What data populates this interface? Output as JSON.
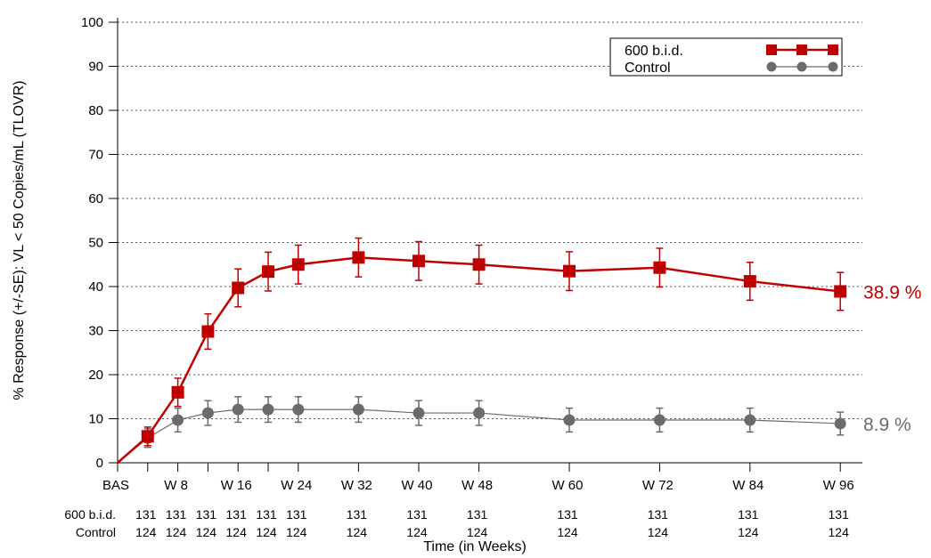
{
  "chart_data": {
    "type": "line",
    "ylabel": "% Response (+/-SE): VL < 50 Copies/mL (TLOVR)",
    "xlabel": "Time (in Weeks)",
    "ylim": [
      0,
      100
    ],
    "yticks": [
      0,
      10,
      20,
      30,
      40,
      50,
      60,
      70,
      80,
      90,
      100
    ],
    "xlim": [
      0,
      98
    ],
    "xtick_values": [
      0,
      8,
      16,
      24,
      32,
      40,
      48,
      60,
      72,
      84,
      96
    ],
    "xtick_labels": [
      "BAS",
      "W 8",
      "W 16",
      "W 24",
      "W 32",
      "W 40",
      "W 48",
      "W 60",
      "W 72",
      "W 84",
      "W 96"
    ],
    "minor_xticks": [
      4,
      12,
      20
    ],
    "grid": true,
    "legend_position": "top-right",
    "series": [
      {
        "name": "600 b.i.d.",
        "color": "#c00000",
        "marker": "square",
        "x": [
          0,
          4,
          8,
          12,
          16,
          20,
          24,
          32,
          40,
          48,
          60,
          72,
          84,
          96
        ],
        "y": [
          0,
          6,
          16,
          29.8,
          39.7,
          43.4,
          45,
          46.6,
          45.8,
          45,
          43.5,
          44.3,
          41.2,
          38.9
        ],
        "se": [
          null,
          2.1,
          3.2,
          4.0,
          4.3,
          4.4,
          4.4,
          4.4,
          4.4,
          4.4,
          4.4,
          4.4,
          4.3,
          4.3
        ],
        "end_label": "38.9 %"
      },
      {
        "name": "Control",
        "color": "#6b6b6b",
        "marker": "circle",
        "x": [
          0,
          4,
          8,
          12,
          16,
          20,
          24,
          32,
          40,
          48,
          60,
          72,
          84,
          96
        ],
        "y": [
          0,
          5.6,
          9.7,
          11.3,
          12.1,
          12.1,
          12.1,
          12.1,
          11.3,
          11.3,
          9.7,
          9.7,
          9.7,
          8.9
        ],
        "se": [
          null,
          2.1,
          2.7,
          2.8,
          2.9,
          2.9,
          2.9,
          2.9,
          2.8,
          2.8,
          2.7,
          2.7,
          2.7,
          2.6
        ],
        "end_label": "8.9 %"
      }
    ],
    "patient_counts": {
      "x": [
        4,
        8,
        12,
        16,
        20,
        24,
        32,
        40,
        48,
        60,
        72,
        84,
        96
      ],
      "rows": [
        {
          "label": "600 b.i.d.",
          "values": [
            "131",
            "131",
            "131",
            "131",
            "131",
            "131",
            "131",
            "131",
            "131",
            "131",
            "131",
            "131",
            "131"
          ]
        },
        {
          "label": "Control",
          "values": [
            "124",
            "124",
            "124",
            "124",
            "124",
            "124",
            "124",
            "124",
            "124",
            "124",
            "124",
            "124",
            "124"
          ]
        }
      ]
    }
  }
}
